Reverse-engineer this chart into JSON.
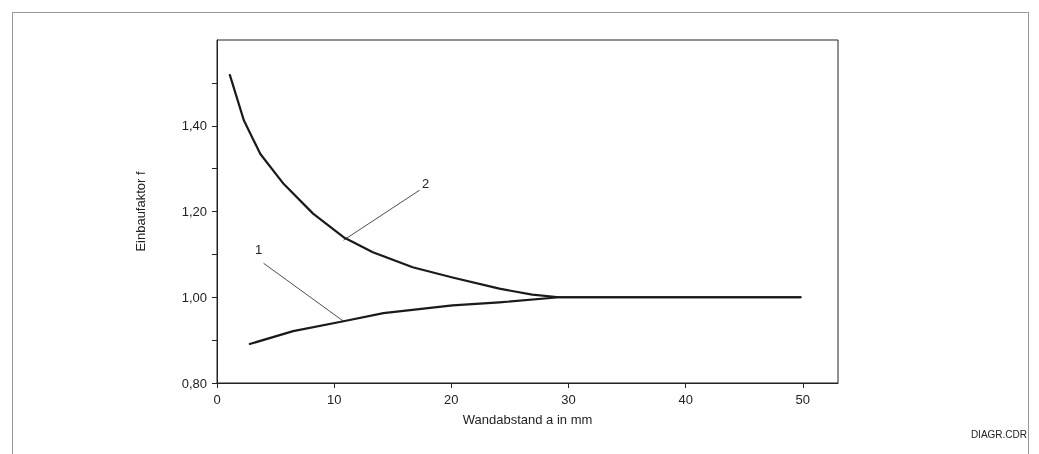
{
  "chart_data": {
    "type": "line",
    "xlabel": "Wandabstand a in mm",
    "ylabel": "Einbaufaktor f",
    "xlim": [
      0,
      53
    ],
    "xticks": [
      0,
      10,
      20,
      30,
      40,
      50
    ],
    "ylim": [
      0.8,
      1.6
    ],
    "yticks": [
      {
        "value": 0.8,
        "label": "0,80"
      },
      {
        "value": 0.9,
        "label": null
      },
      {
        "value": 1.0,
        "label": "1,00"
      },
      {
        "value": 1.1,
        "label": null
      },
      {
        "value": 1.2,
        "label": "1,20"
      },
      {
        "value": 1.3,
        "label": null
      },
      {
        "value": 1.4,
        "label": "1,40"
      },
      {
        "value": 1.5,
        "label": null
      }
    ],
    "series": [
      {
        "color": "#1a1a1a",
        "x": [
          2.8,
          6.5,
          10.8,
          14.2,
          20.1,
          24.1,
          29.2,
          49.8
        ],
        "values": [
          0.891,
          0.921,
          0.944,
          0.963,
          0.981,
          0.988,
          1.0,
          1.0
        ]
      },
      {
        "color": "#1a1a1a",
        "x": [
          1.1,
          2.3,
          3.7,
          5.7,
          8.2,
          10.8,
          13.3,
          16.7,
          20.1,
          24.1,
          26.9,
          29.2,
          49.8
        ],
        "values": [
          1.518,
          1.412,
          1.334,
          1.264,
          1.195,
          1.14,
          1.105,
          1.07,
          1.046,
          1.02,
          1.006,
          1.0,
          1.0
        ]
      }
    ],
    "annotations": [
      {
        "text": "1",
        "x": 10.8,
        "y": 0.944
      },
      {
        "text": "2",
        "x": 10.8,
        "y": 1.133
      },
      "DIAGR.CDR"
    ],
    "marker": "none",
    "line_style": "solid"
  }
}
